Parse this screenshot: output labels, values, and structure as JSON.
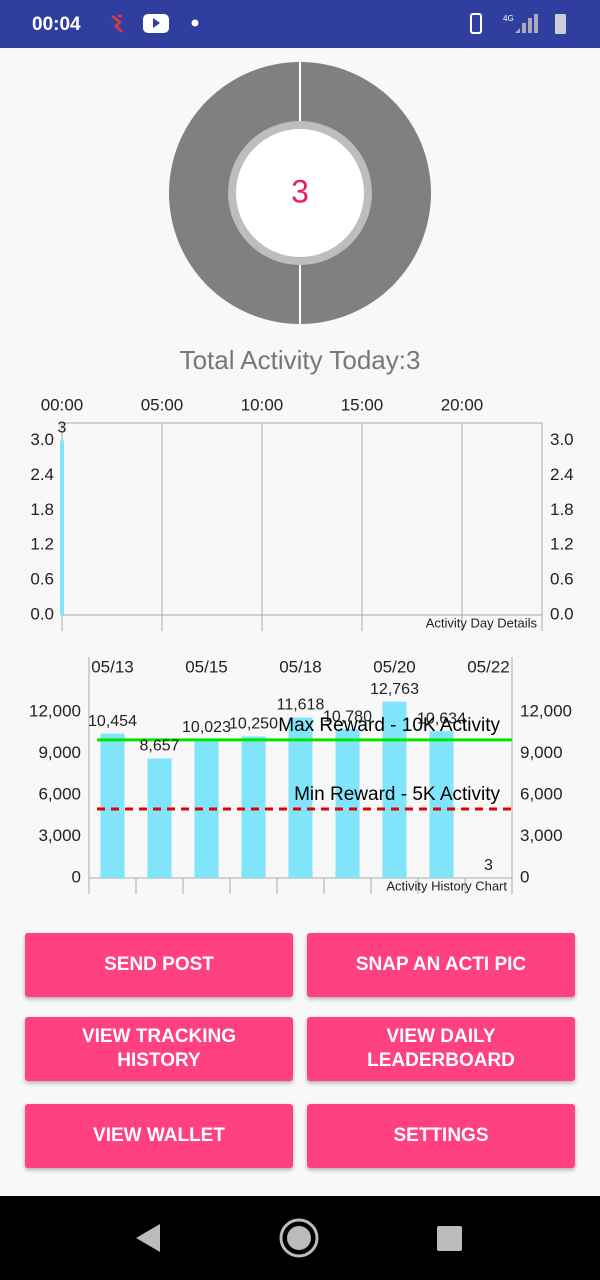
{
  "status_bar": {
    "time": "00:04",
    "network": "4G"
  },
  "donut": {
    "center_text": "3",
    "caption": "Total Activity Today:3"
  },
  "chart_data": [
    {
      "type": "bar",
      "x": [
        0
      ],
      "values": [
        3
      ],
      "color": "#80e5fb",
      "xlim": [
        0,
        24
      ],
      "xticks": [
        {
          "value": 0,
          "label": "00:00"
        },
        {
          "value": 5,
          "label": "05:00"
        },
        {
          "value": 10,
          "label": "10:00"
        },
        {
          "value": 15,
          "label": "15:00"
        },
        {
          "value": 20,
          "label": "20:00"
        }
      ],
      "ylim": [
        0,
        3.3
      ],
      "yticks": [
        {
          "value": 0,
          "label": "0.0"
        },
        {
          "value": 0.6,
          "label": "0.6"
        },
        {
          "value": 1.2,
          "label": "1.2"
        },
        {
          "value": 1.8,
          "label": "1.8"
        },
        {
          "value": 2.4,
          "label": "2.4"
        },
        {
          "value": 3,
          "label": "3.0"
        }
      ],
      "grid": true,
      "annotation": "Activity Day Details"
    },
    {
      "type": "bar",
      "categories": [
        "05/13",
        null,
        "05/15",
        null,
        "05/18",
        null,
        "05/20",
        null,
        "05/22"
      ],
      "values": [
        10454,
        8657,
        10023,
        10250,
        11618,
        10780,
        12763,
        10634,
        3
      ],
      "value_labels": [
        "10,454",
        "8,657",
        "10,023",
        "10,250",
        "11,618",
        "10,780",
        "12,763",
        "10,634",
        "3"
      ],
      "color": "#80e5fb",
      "ylim": [
        0,
        16000
      ],
      "yticks": [
        0,
        {
          "value": 3000,
          "label": "3,000"
        },
        {
          "value": 6000,
          "label": "6,000"
        },
        {
          "value": 9000,
          "label": "9,000"
        },
        {
          "value": 12000,
          "label": "12,000"
        }
      ],
      "grid": false,
      "limit_lines": [
        {
          "value": 10000,
          "label": "Max Reward - 10K Activity",
          "color": "#00e600",
          "dashed": false
        },
        {
          "value": 5000,
          "label": "Min Reward - 5K Activity",
          "color": "#e00000",
          "dashed": true
        }
      ],
      "annotation": "Activity History Chart"
    }
  ],
  "buttons": [
    "SEND POST",
    "SNAP AN ACTI PIC",
    "VIEW TRACKING HISTORY",
    "VIEW DAILY LEADERBOARD",
    "VIEW WALLET",
    "SETTINGS"
  ]
}
